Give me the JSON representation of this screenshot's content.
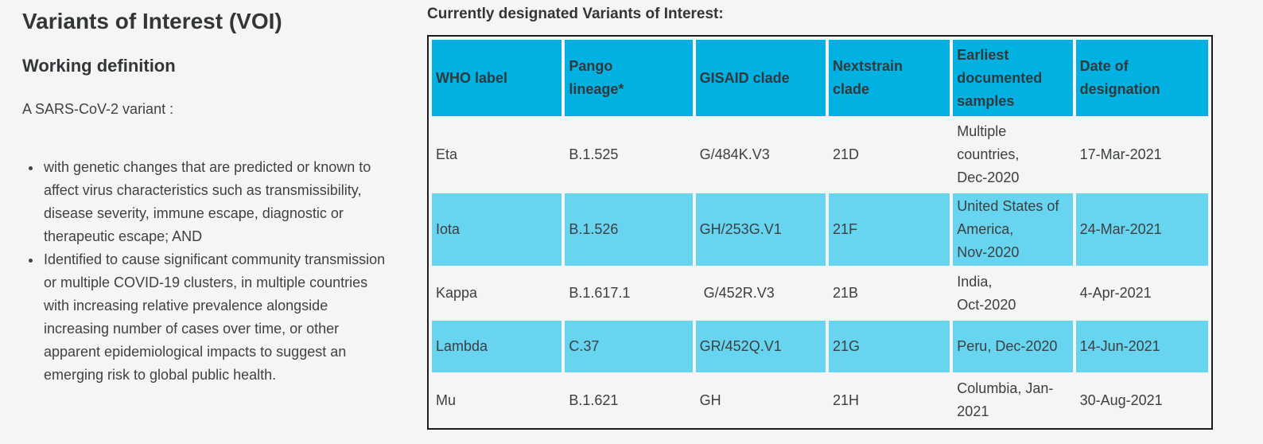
{
  "left_panel": {
    "title": "Variants of Interest (VOI)",
    "subtitle": "Working definition",
    "intro": "A SARS-CoV-2 variant :",
    "bullets": [
      "with genetic changes that are predicted or known to affect virus characteristics such as transmissibility, disease severity, immune escape, diagnostic or therapeutic escape; AND",
      "Identified to cause significant community transmission or multiple COVID-19 clusters, in multiple countries with increasing relative prevalence alongside increasing number of cases over time, or other apparent epidemiological impacts to suggest an emerging risk to global public health."
    ]
  },
  "table_section": {
    "heading": "Currently designated Variants of Interest:",
    "colors": {
      "header_bg": "#00b1e2",
      "alt_row_bg": "#67d4f0",
      "row_bg": "#f4f5f4",
      "border": "#1d1d1d",
      "text": "#3c4043"
    },
    "columns": [
      "WHO label",
      "Pango\nlineage*",
      "GISAID clade",
      "Nextstrain\nclade",
      "Earliest\ndocumented\nsamples",
      "Date of\ndesignation"
    ],
    "rows": [
      {
        "who_label": "Eta",
        "pango": "B.1.525",
        "gisaid": "G/484K.V3",
        "nextstrain": "21D",
        "samples": "Multiple\ncountries,\nDec-2020",
        "designation": "17-Mar-2021"
      },
      {
        "who_label": "Iota",
        "pango": "B.1.526",
        "gisaid": "GH/253G.V1",
        "nextstrain": "21F",
        "samples": "United States of\nAmerica,\nNov-2020",
        "designation": "24-Mar-2021"
      },
      {
        "who_label": "Kappa",
        "pango": "B.1.617.1",
        "gisaid": " G/452R.V3",
        "nextstrain": "21B",
        "samples": "India,\nOct-2020",
        "designation": "4-Apr-2021"
      },
      {
        "who_label": "Lambda",
        "pango": "C.37",
        "gisaid": "GR/452Q.V1",
        "nextstrain": "21G",
        "samples": "Peru, Dec-2020",
        "designation": "14-Jun-2021"
      },
      {
        "who_label": "Mu",
        "pango": "B.1.621",
        "gisaid": "GH",
        "nextstrain": "21H",
        "samples": "Columbia, Jan-\n2021",
        "designation": "30-Aug-2021"
      }
    ]
  }
}
